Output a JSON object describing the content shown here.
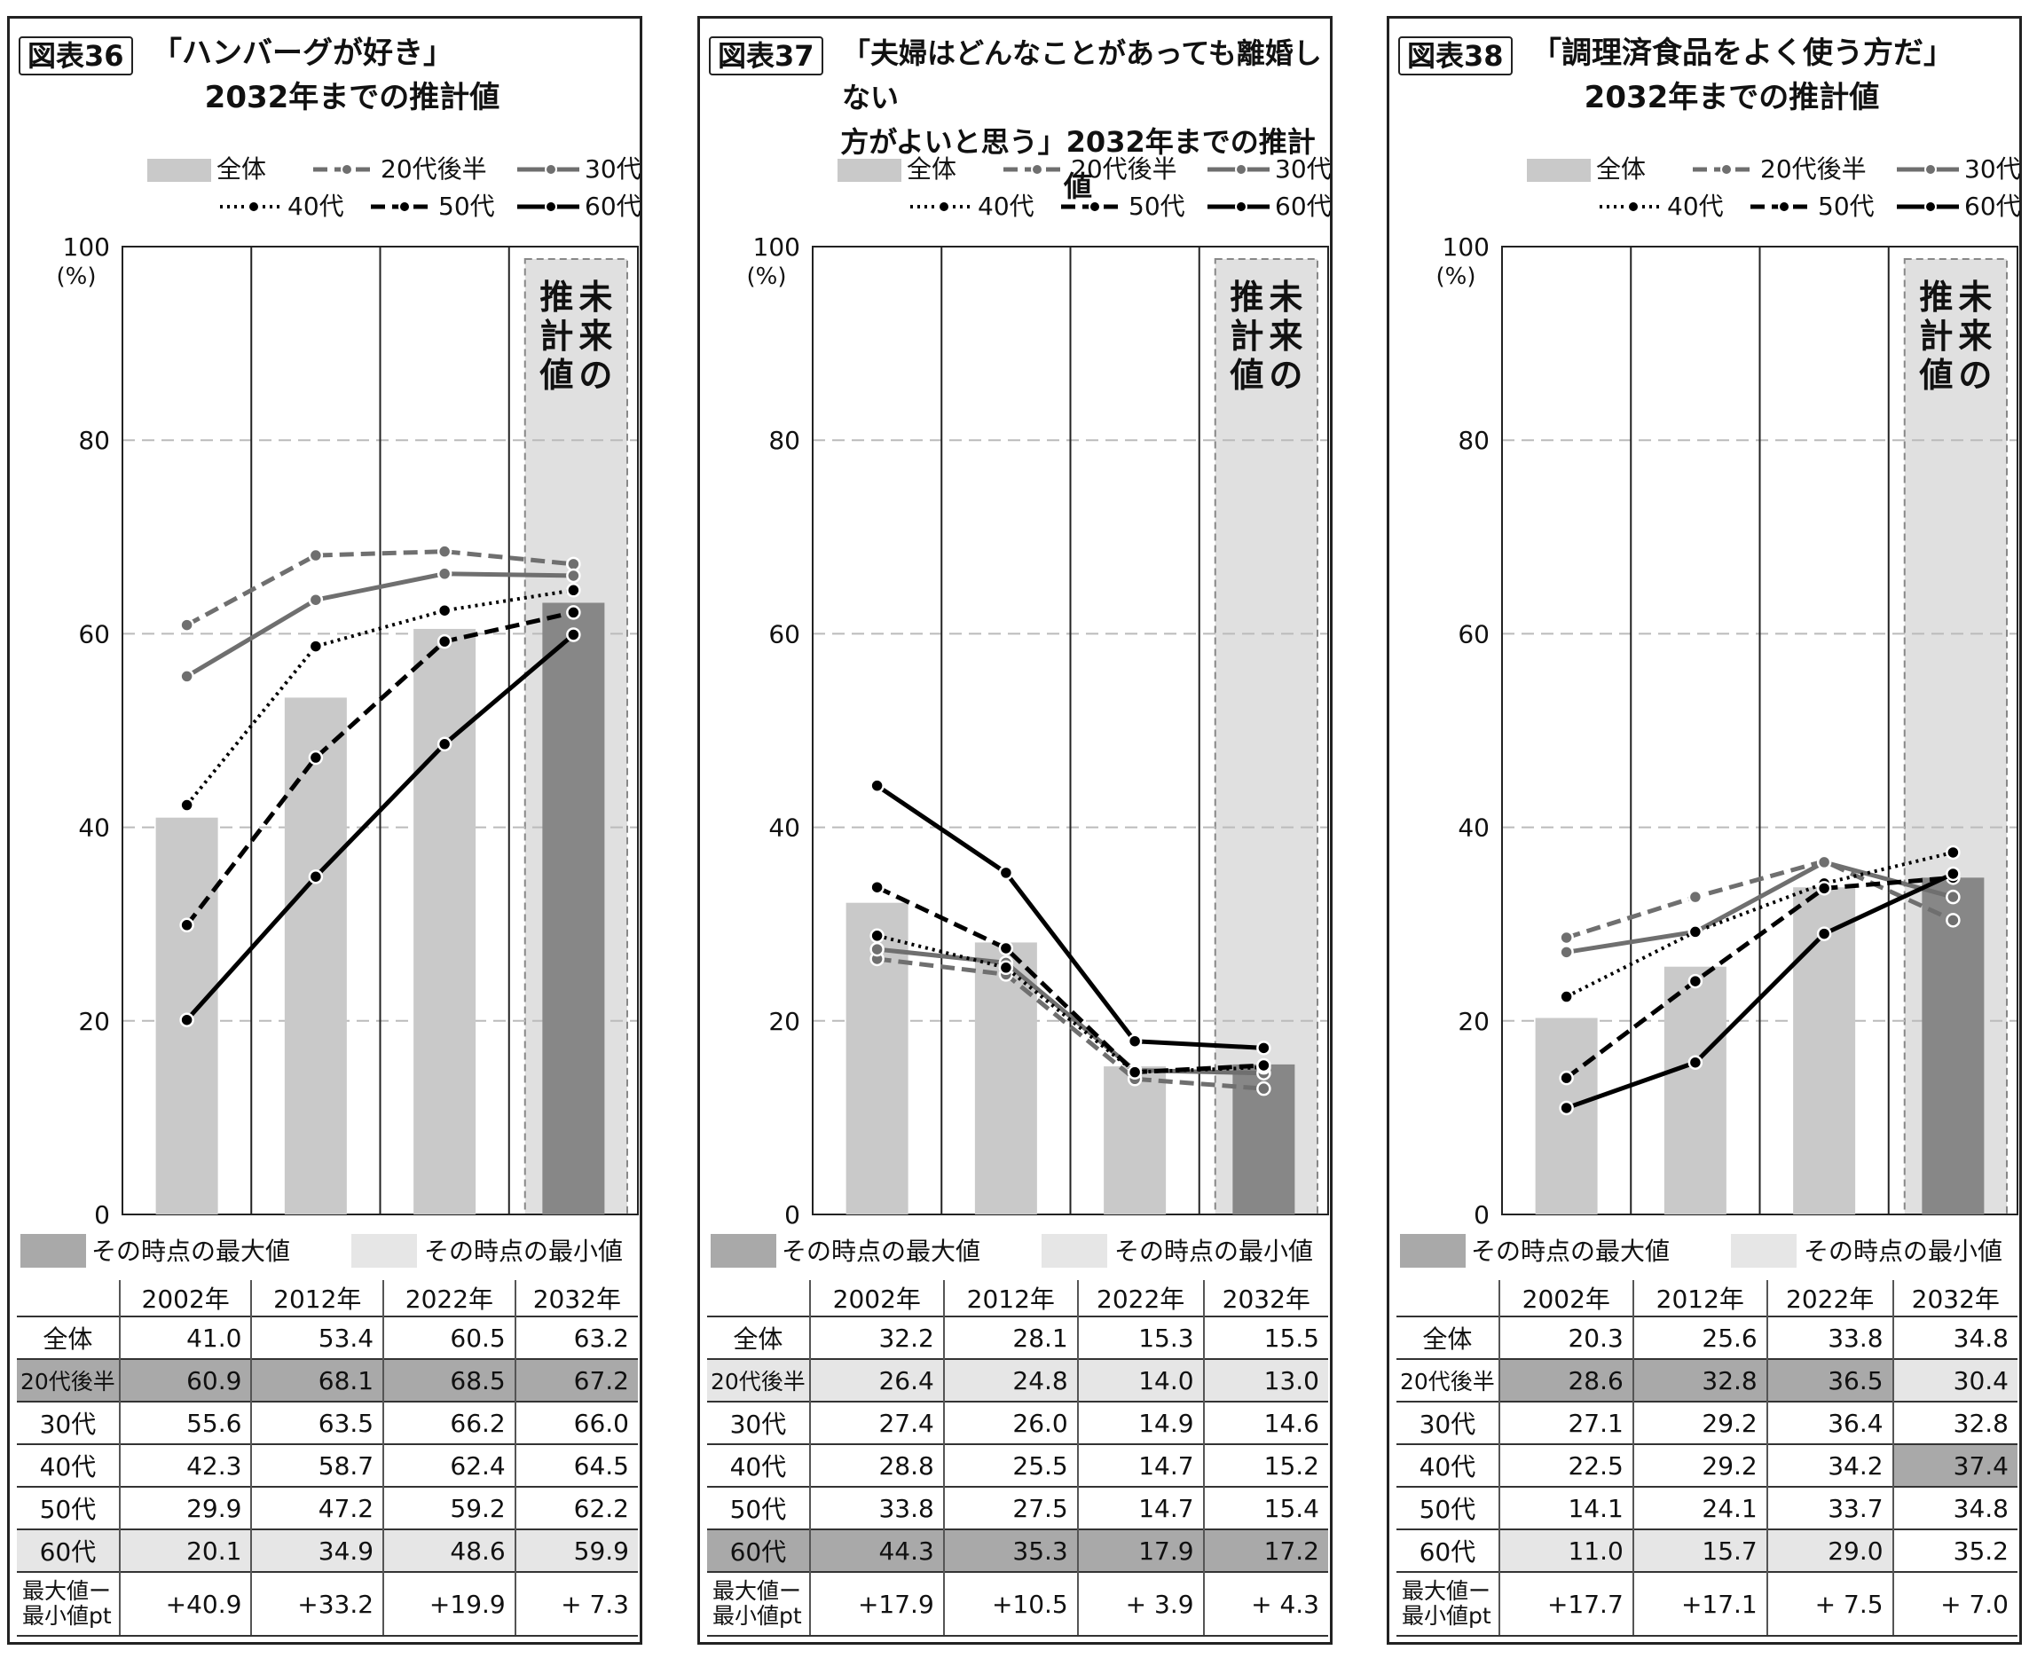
{
  "legend": {
    "all": "全体",
    "s20": "20代後半",
    "s30": "30代",
    "s40": "40代",
    "s50": "50代",
    "s60": "60代",
    "max_label": "その時点の最大値",
    "min_label": "その時点の最小値"
  },
  "axis": {
    "ticks": [
      "0",
      "20",
      "40",
      "60",
      "80",
      "100"
    ],
    "unit": "(%)",
    "future": [
      "未来の",
      "推計値"
    ]
  },
  "table": {
    "years": [
      "2002年",
      "2012年",
      "2022年",
      "2032年"
    ],
    "diff_label_1": "最大値ー",
    "diff_label_2": "最小値pt"
  },
  "colors": {
    "bar": "#c9c9c9",
    "bar_future": "#878787",
    "future_bg": "#e0e0e0",
    "max": "#a9a9a9",
    "min": "#e6e6e6"
  },
  "chart_data": [
    {
      "type": "bar+line",
      "tag": "図表36",
      "title": "「ハンバーグが好き」",
      "subtitle": "2032年までの推計値",
      "categories": [
        "2002年",
        "2012年",
        "2022年",
        "2032年"
      ],
      "ylim": [
        0,
        100
      ],
      "series": [
        {
          "name": "全体",
          "values": [
            41.0,
            53.4,
            60.5,
            63.2
          ]
        },
        {
          "name": "20代後半",
          "values": [
            60.9,
            68.1,
            68.5,
            67.2
          ]
        },
        {
          "name": "30代",
          "values": [
            55.6,
            63.5,
            66.2,
            66.0
          ]
        },
        {
          "name": "40代",
          "values": [
            42.3,
            58.7,
            62.4,
            64.5
          ]
        },
        {
          "name": "50代",
          "values": [
            29.9,
            47.2,
            59.2,
            62.2
          ]
        },
        {
          "name": "60代",
          "values": [
            20.1,
            34.9,
            48.6,
            59.9
          ]
        }
      ],
      "diff": [
        "+40.9",
        "+33.2",
        "+19.9",
        "+ 7.3"
      ]
    },
    {
      "type": "bar+line",
      "tag": "図表37",
      "title": "「夫婦はどんなことがあっても離婚しない",
      "subtitle": "方がよいと思う」2032年までの推計値",
      "categories": [
        "2002年",
        "2012年",
        "2022年",
        "2032年"
      ],
      "ylim": [
        0,
        100
      ],
      "series": [
        {
          "name": "全体",
          "values": [
            32.2,
            28.1,
            15.3,
            15.5
          ]
        },
        {
          "name": "20代後半",
          "values": [
            26.4,
            24.8,
            14.0,
            13.0
          ]
        },
        {
          "name": "30代",
          "values": [
            27.4,
            26.0,
            14.9,
            14.6
          ]
        },
        {
          "name": "40代",
          "values": [
            28.8,
            25.5,
            14.7,
            15.2
          ]
        },
        {
          "name": "50代",
          "values": [
            33.8,
            27.5,
            14.7,
            15.4
          ]
        },
        {
          "name": "60代",
          "values": [
            44.3,
            35.3,
            17.9,
            17.2
          ]
        }
      ],
      "diff": [
        "+17.9",
        "+10.5",
        "+ 3.9",
        "+ 4.3"
      ]
    },
    {
      "type": "bar+line",
      "tag": "図表38",
      "title": "「調理済食品をよく使う方だ」",
      "subtitle": "2032年までの推計値",
      "categories": [
        "2002年",
        "2012年",
        "2022年",
        "2032年"
      ],
      "ylim": [
        0,
        100
      ],
      "series": [
        {
          "name": "全体",
          "values": [
            20.3,
            25.6,
            33.8,
            34.8
          ]
        },
        {
          "name": "20代後半",
          "values": [
            28.6,
            32.8,
            36.5,
            30.4
          ]
        },
        {
          "name": "30代",
          "values": [
            27.1,
            29.2,
            36.4,
            32.8
          ]
        },
        {
          "name": "40代",
          "values": [
            22.5,
            29.2,
            34.2,
            37.4
          ]
        },
        {
          "name": "50代",
          "values": [
            14.1,
            24.1,
            33.7,
            34.8
          ]
        },
        {
          "name": "60代",
          "values": [
            11.0,
            15.7,
            29.0,
            35.2
          ]
        }
      ],
      "diff": [
        "+17.7",
        "+17.1",
        "+ 7.5",
        "+ 7.0"
      ]
    }
  ]
}
